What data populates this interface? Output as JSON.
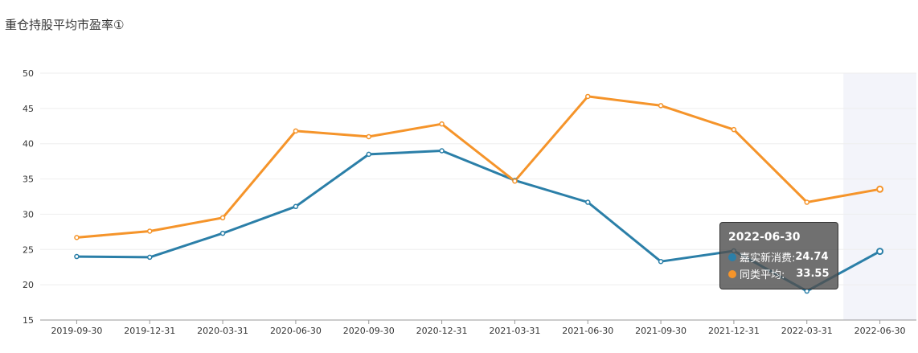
{
  "title": "重仓持股平均市盈率①",
  "colors": {
    "series1": "#2b7fa8",
    "series2": "#f5942a",
    "grid": "#eeeeee",
    "highlight": "#f3f4fa"
  },
  "tooltip": {
    "date": "2022-06-30",
    "row1_label": "嘉实新消费:",
    "row1_value": "24.74",
    "row2_label": "同类平均:",
    "row2_value": "33.55"
  },
  "chart_data": {
    "type": "line",
    "title": "重仓持股平均市盈率①",
    "categories": [
      "2019-09-30",
      "2019-12-31",
      "2020-03-31",
      "2020-06-30",
      "2020-09-30",
      "2020-12-31",
      "2021-03-31",
      "2021-06-30",
      "2021-09-30",
      "2021-12-31",
      "2022-03-31",
      "2022-06-30"
    ],
    "ylim": [
      15,
      50
    ],
    "yticks": [
      15,
      20,
      25,
      30,
      35,
      40,
      45,
      50
    ],
    "grid": true,
    "highlighted_category": "2022-06-30",
    "series": [
      {
        "name": "嘉实新消费",
        "values": [
          24.0,
          23.9,
          27.3,
          31.1,
          38.5,
          39.0,
          34.8,
          31.7,
          23.3,
          24.8,
          19.1,
          24.74
        ]
      },
      {
        "name": "同类平均",
        "values": [
          26.7,
          27.6,
          29.5,
          41.8,
          41.0,
          42.8,
          34.7,
          46.7,
          45.4,
          42.0,
          31.7,
          33.55
        ]
      }
    ]
  }
}
